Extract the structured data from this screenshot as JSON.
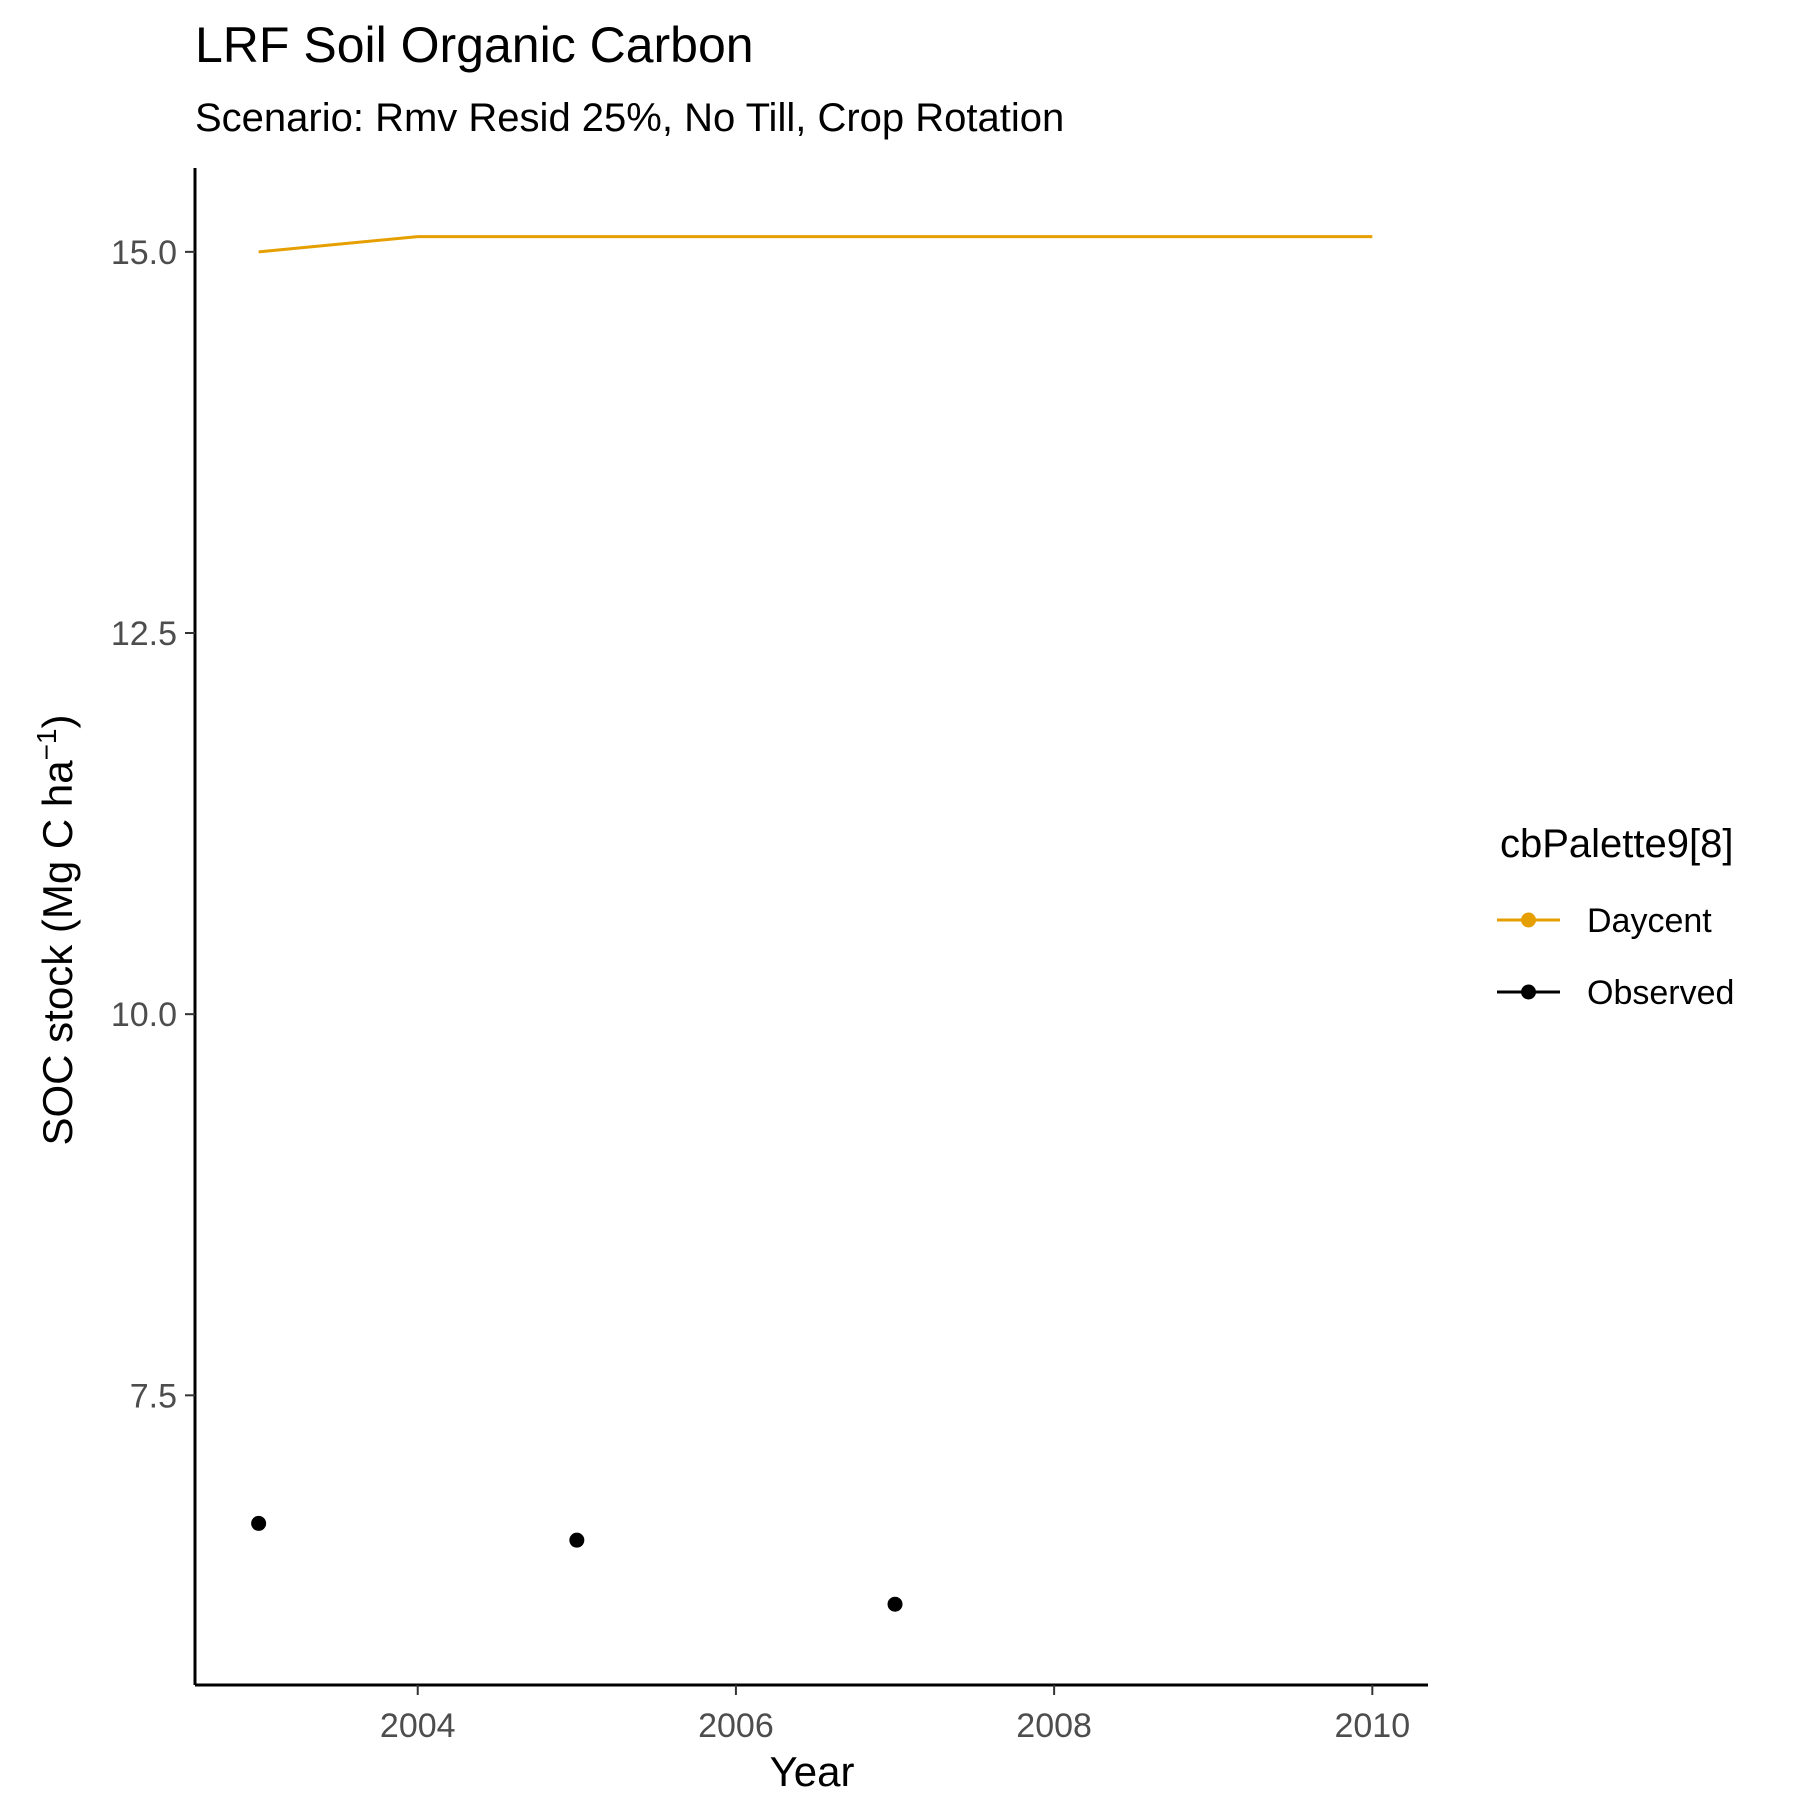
{
  "chart_data": {
    "type": "line",
    "title": "LRF Soil Organic Carbon",
    "subtitle": "Scenario: Rmv Resid 25%, No Till, Crop Rotation",
    "xlabel": "Year",
    "ylabel_main": "SOC stock (Mg C ha",
    "ylabel_sup": "−1",
    "ylabel_tail": ")",
    "xlim": [
      2002.6,
      2010.35
    ],
    "ylim": [
      5.6,
      15.55
    ],
    "xticks": [
      2004,
      2006,
      2008,
      2010
    ],
    "xtick_labels": [
      "2004",
      "2006",
      "2008",
      "2010"
    ],
    "yticks": [
      7.5,
      10.0,
      12.5,
      15.0
    ],
    "ytick_labels": [
      "7.5",
      "10.0",
      "12.5",
      "15.0"
    ],
    "grid": false,
    "legend": {
      "title": "cbPalette9[8]",
      "placement": "right",
      "entries": [
        "Daycent",
        "Observed"
      ]
    },
    "series": [
      {
        "name": "Daycent",
        "kind": "line",
        "color": "#E69F00",
        "x": [
          2003,
          2004,
          2005,
          2006,
          2007,
          2008,
          2009,
          2010
        ],
        "y": [
          15.0,
          15.1,
          15.1,
          15.1,
          15.1,
          15.1,
          15.1,
          15.1
        ]
      },
      {
        "name": "Observed",
        "kind": "point",
        "color": "#000000",
        "x": [
          2003,
          2005,
          2007
        ],
        "y": [
          6.66,
          6.55,
          6.13
        ]
      }
    ]
  }
}
